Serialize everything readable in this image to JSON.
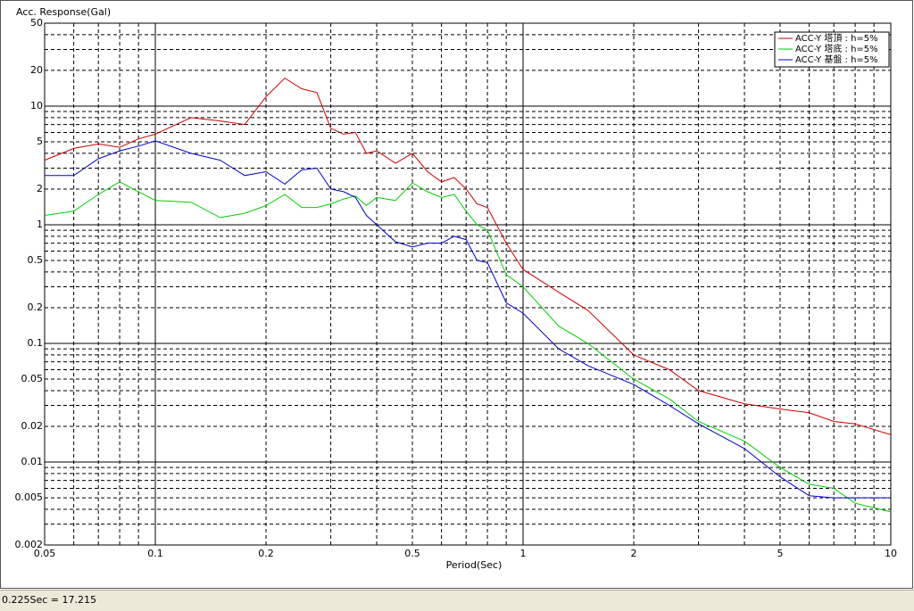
{
  "chart_data": {
    "type": "line",
    "title": "Acc. Response(Gal)",
    "x_label": "Period(Sec)",
    "log_x": true,
    "log_y": true,
    "xlim": [
      0.05,
      10
    ],
    "ylim": [
      0.002,
      50
    ],
    "xticks": [
      0.05,
      0.1,
      0.2,
      0.5,
      1,
      2,
      5,
      10
    ],
    "yticks": [
      50,
      20,
      10,
      5,
      2,
      1,
      0.5,
      0.2,
      0.1,
      0.05,
      0.02,
      0.01,
      0.005,
      0.002
    ],
    "xgrid": [
      0.05,
      0.06,
      0.07,
      0.08,
      0.09,
      0.1,
      0.2,
      0.3,
      0.4,
      0.5,
      0.6,
      0.7,
      0.8,
      0.9,
      1,
      2,
      3,
      4,
      5,
      6,
      7,
      8,
      9,
      10
    ],
    "ygrid": [
      0.002,
      0.003,
      0.004,
      0.005,
      0.006,
      0.007,
      0.008,
      0.009,
      0.01,
      0.02,
      0.03,
      0.04,
      0.05,
      0.06,
      0.07,
      0.08,
      0.09,
      0.1,
      0.2,
      0.3,
      0.4,
      0.5,
      0.6,
      0.7,
      0.8,
      0.9,
      1,
      2,
      3,
      4,
      5,
      6,
      7,
      8,
      9,
      10,
      20,
      30,
      40,
      50
    ],
    "legend": "upper right",
    "x": [
      0.05,
      0.06,
      0.07,
      0.08,
      0.09,
      0.1,
      0.125,
      0.15,
      0.175,
      0.2,
      0.225,
      0.25,
      0.275,
      0.3,
      0.325,
      0.35,
      0.375,
      0.4,
      0.45,
      0.5,
      0.55,
      0.6,
      0.65,
      0.7,
      0.75,
      0.8,
      0.9,
      1.0,
      1.25,
      1.5,
      2,
      2.5,
      3,
      4,
      5,
      6,
      7,
      8,
      10
    ],
    "series": [
      {
        "name": "ACC-Y 塔頂 : h=5%",
        "color": "#d00000",
        "values": [
          3.5,
          4.4,
          4.8,
          4.5,
          5.3,
          5.8,
          8,
          7.5,
          7,
          12,
          17.215,
          14,
          13,
          6.5,
          5.8,
          6,
          4,
          4.2,
          3.3,
          4,
          2.8,
          2.3,
          2.5,
          2,
          1.5,
          1.4,
          0.7,
          0.42,
          0.27,
          0.19,
          0.08,
          0.06,
          0.04,
          0.031,
          0.028,
          0.026,
          0.022,
          0.021,
          0.017
        ]
      },
      {
        "name": "ACC-Y 塔底 : h=5%",
        "color": "#00d000",
        "values": [
          1.2,
          1.3,
          1.8,
          2.3,
          1.9,
          1.6,
          1.55,
          1.15,
          1.25,
          1.45,
          1.8,
          1.4,
          1.4,
          1.5,
          1.65,
          1.75,
          1.45,
          1.7,
          1.6,
          2.25,
          1.9,
          1.7,
          1.8,
          1.3,
          1.0,
          0.9,
          0.38,
          0.3,
          0.14,
          0.1,
          0.05,
          0.034,
          0.022,
          0.015,
          0.009,
          0.0065,
          0.006,
          0.0045,
          0.0038
        ]
      },
      {
        "name": "ACC-Y 基盤 : h=5%",
        "color": "#0000d0",
        "values": [
          2.6,
          2.6,
          3.6,
          4.2,
          4.6,
          5.1,
          4,
          3.5,
          2.6,
          2.8,
          2.2,
          2.9,
          3,
          2,
          1.9,
          1.7,
          1.2,
          1.0,
          0.72,
          0.65,
          0.7,
          0.7,
          0.8,
          0.75,
          0.5,
          0.48,
          0.22,
          0.18,
          0.09,
          0.065,
          0.045,
          0.03,
          0.021,
          0.013,
          0.0075,
          0.0052,
          0.005,
          0.005,
          0.005
        ]
      }
    ]
  },
  "status_bar": "0.225Sec = 17.215"
}
